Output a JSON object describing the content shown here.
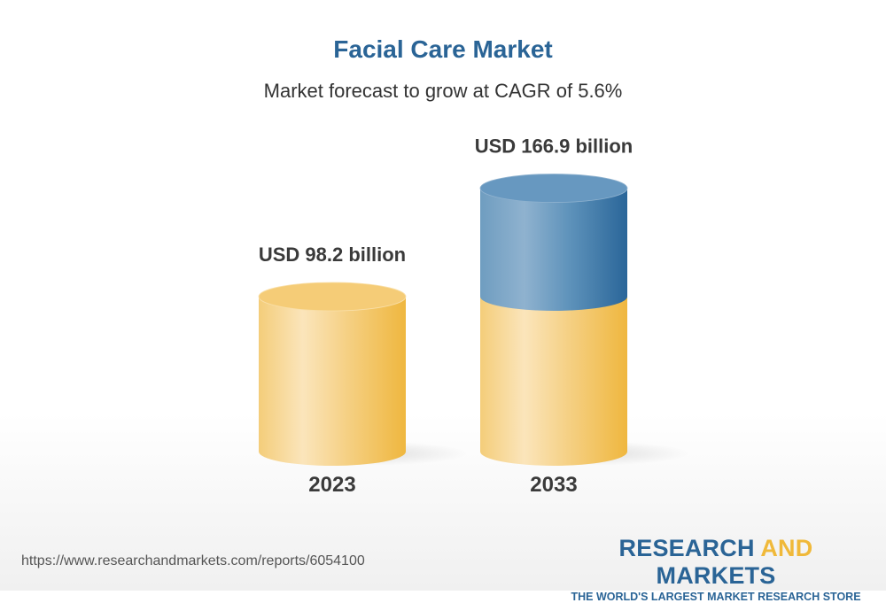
{
  "chart_data": {
    "type": "bar",
    "style": "3d-cylinder",
    "title": "Facial Care Market",
    "subtitle": "Market forecast to grow at CAGR of 5.6%",
    "categories": [
      "2023",
      "2033"
    ],
    "values": [
      98.2,
      166.9
    ],
    "data_labels": [
      "USD 98.2 billion",
      "USD 166.9 billion"
    ],
    "unit": "USD billion",
    "colors": {
      "base": "#f0b93a",
      "growth": "#2a6496",
      "title": "#2a6496"
    }
  },
  "footer": {
    "url": "https://www.researchandmarkets.com/reports/6054100",
    "logo_word1": "RESEARCH",
    "logo_word2": "AND",
    "logo_word3": "MARKETS",
    "tagline": "THE WORLD'S LARGEST MARKET RESEARCH STORE"
  }
}
